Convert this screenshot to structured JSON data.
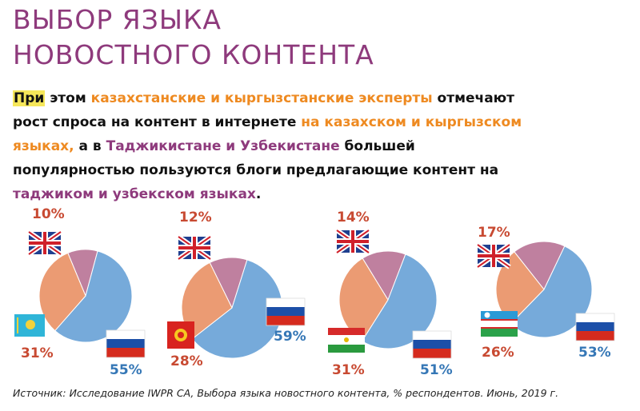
{
  "title_line1": "ВЫБОР ЯЗЫКА",
  "title_line2": "НОВОСТНОГО КОНТЕНТА",
  "lead": {
    "p1": "При",
    "p2": " этом ",
    "p3": "казахстанские и кыргызстанские эксперты",
    "p4": " отмечают рост спроса на контент в интернете ",
    "p5": "на казахском и кыргызском языках,",
    "p6": " а в ",
    "p7": "Таджикистане и Узбекистане",
    "p8": " большей популярностью пользуются блоги предлагающие контент на ",
    "p9": "таджиком и узбекском языках",
    "p10": "."
  },
  "colors": {
    "title": "#8e3a7c",
    "orange": "#ee8a21",
    "russian": "#5e9bd4",
    "local": "#e88a5a",
    "english": "#b46a8e"
  },
  "chart_data": [
    {
      "type": "pie",
      "labels": [
        "Английский",
        "Казахский",
        "Русский"
      ],
      "values": [
        10,
        31,
        55
      ],
      "flags": [
        "uk-flag-icon",
        "kazakhstan-flag-icon",
        "russia-flag-icon"
      ]
    },
    {
      "type": "pie",
      "labels": [
        "Английский",
        "Кыргызский",
        "Русский"
      ],
      "values": [
        12,
        28,
        59
      ],
      "flags": [
        "uk-flag-icon",
        "kyrgyzstan-flag-icon",
        "russia-flag-icon"
      ]
    },
    {
      "type": "pie",
      "labels": [
        "Английский",
        "Таджикский",
        "Русский"
      ],
      "values": [
        14,
        31,
        51
      ],
      "flags": [
        "uk-flag-icon",
        "tajikistan-flag-icon",
        "russia-flag-icon"
      ]
    },
    {
      "type": "pie",
      "labels": [
        "Английский",
        "Узбекский",
        "Русский"
      ],
      "values": [
        17,
        26,
        53
      ],
      "flags": [
        "uk-flag-icon",
        "uzbekistan-flag-icon",
        "russia-flag-icon"
      ]
    }
  ],
  "pct_labels": [
    {
      "english": "10%",
      "local": "31%",
      "russian": "55%"
    },
    {
      "english": "12%",
      "local": "28%",
      "russian": "59%"
    },
    {
      "english": "14%",
      "local": "31%",
      "russian": "51%"
    },
    {
      "english": "17%",
      "local": "26%",
      "russian": "53%"
    }
  ],
  "source": "Источник: Исследование IWPR CA, Выбора языка новостного контента, % респондентов. Июнь, 2019 г."
}
